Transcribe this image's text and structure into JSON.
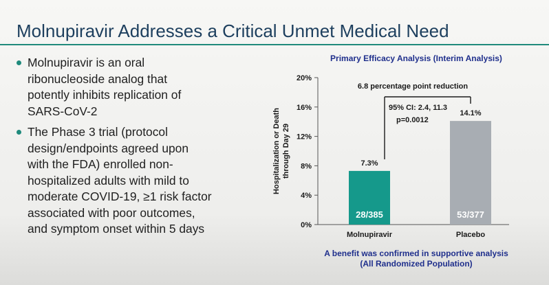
{
  "slide": {
    "title": "Molnupiravir Addresses a Critical Unmet Medical Need",
    "bullets": [
      [
        "Molnupiravir is an oral",
        "ribonucleoside analog that",
        "potently inhibits replication of",
        "SARS-CoV-2"
      ],
      [
        "The Phase 3 trial (protocol",
        "design/endpoints agreed upon",
        "with the FDA) enrolled non-",
        "hospitalized adults with mild to",
        "moderate COVID-19, ≥1 risk factor",
        "associated with poor outcomes,",
        "and symptom onset within 5 days"
      ]
    ],
    "footnote": [
      "A benefit was confirmed in supportive analysis",
      "(All Randomized Population)"
    ]
  },
  "colors": {
    "accent": "#1f8a7c",
    "title": "#1d3f5e",
    "chart_text": "#1f2f8c"
  },
  "chart_data": {
    "type": "bar",
    "title": "Primary Efficacy Analysis (Interim Analysis)",
    "ylabel_lines": [
      "Hospitalization or Death",
      "through Day 29"
    ],
    "ylim": [
      0,
      20
    ],
    "yticks": [
      0,
      4,
      8,
      12,
      16,
      20
    ],
    "ytick_labels": [
      "0%",
      "4%",
      "8%",
      "12%",
      "16%",
      "20%"
    ],
    "grid": false,
    "categories": [
      "Molnupiravir",
      "Placebo"
    ],
    "values": [
      7.3,
      14.1
    ],
    "value_labels": [
      "7.3%",
      "14.1%"
    ],
    "counts": [
      "28/385",
      "53/377"
    ],
    "bar_colors": [
      "#15998b",
      "#a8adb3"
    ],
    "annotations": {
      "reduction": "6.8 percentage point reduction",
      "ci": "95% CI: 2.4, 11.3",
      "p": "p=0.0012"
    }
  }
}
